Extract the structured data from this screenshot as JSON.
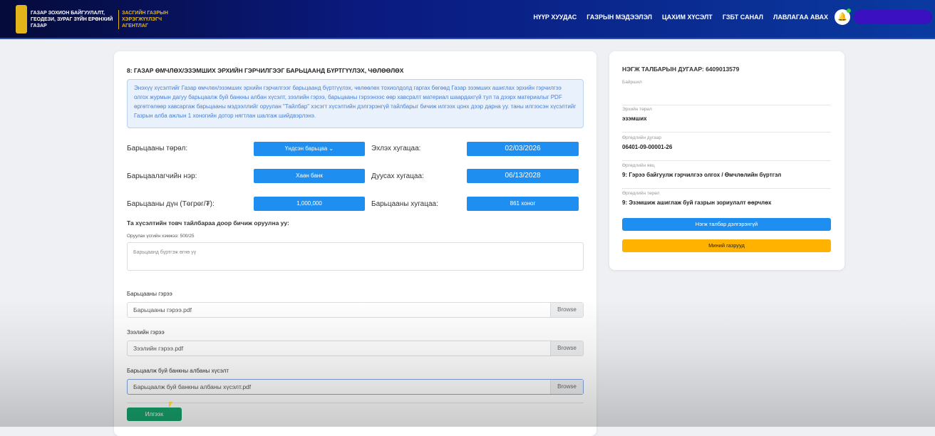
{
  "header": {
    "org_name": "ГАЗАР ЗОХИОН БАЙГУУЛАЛТ, ГЕОДЕЗИ, ЗУРАГ ЗҮЙН ЕРӨНХИЙ ГАЗАР",
    "agency": "ЗАСГИЙН ГАЗРЫН ХЭРЭГЖҮҮЛЭГЧ АГЕНТЛАГ",
    "nav": [
      "НҮҮР ХУУДАС",
      "ГАЗРЫН МЭДЭЭЛЭЛ",
      "ЦАХИМ ХҮСЭЛТ",
      "ГЗБТ САНАЛ",
      "ЛАВЛАГАА АВАХ"
    ],
    "accent": "#0a1a80"
  },
  "form": {
    "title": "8: ГАЗАР ӨМЧЛӨХ/ЭЗЭМШИХ ЭРХИЙН ГЭРЧИЛГЭЭГ БАРЬЦААНД БҮРТГҮҮЛЭХ, ЧӨЛӨӨЛӨХ",
    "info": "Энэхүү хүсэлтийг Газар өмчлөх/эзэмших эрхийн гэрчилгээг барьцаанд бүртгүүлэх, чөлөөлөх тохиолдолд гаргах бөгөөд Газар эзэмших ашиглах эрхийн гэрчилгээ олгох журмын дагуу барьцаалж буй банкны албан хүсэлт, зээлийн гэрээ, барьцааны гэрээнээс өөр хавсралт материал шаардахгүй тул та дээрх материалыг PDF өргөтгөлөөр хавсаргаж барьцааны мэдээллийг оруулан \"Тайлбар\" хэсэгт хүсэлтийн дэлгэрэнгүй тайлбарыг бичиж илгээх цонх дээр дарна уу. таны илгээсэн хүсэлтийг Газрын алба ажлын 1 хоногийн дотор нягтлан шалгаж шийдвэрлэнэ.",
    "pledge_type_label": "Барьцааны төрөл:",
    "pledge_type": "Үндсэн барьцаа",
    "start_label": "Эхлэх хугацаа:",
    "start": "02/03/2026",
    "pledgee_label": "Барьцаалагчийн нэр:",
    "pledgee": "Хаан банк",
    "end_label": "Дуусах хугацаа:",
    "end": "06/13/2028",
    "amount_label": "Барьцааны дүн (Төгрөг/₮):",
    "amount": "1,000,000",
    "duration_label": "Барьцааны хугацаа:",
    "duration": "861 хоног",
    "desc_heading": "Та хүсэлтийн товч тайлбараа доор бичиж оруулна уу:",
    "char_count": "Оруулах үсгийн хэмжээ: 500/25",
    "desc_value": "Барьцаанд бүртгэж өгнө үү",
    "files": [
      {
        "label": "Барьцааны гэрээ",
        "value": "Барьцааны гэрээ.pdf",
        "browse": "Browse"
      },
      {
        "label": "Зээлийн гэрээ",
        "value": "Зээлийн гэрээ.pdf",
        "browse": "Browse"
      },
      {
        "label": "Барьцаалж буй банкны албаны хүсэлт",
        "value": "Барьцаалж буй банкны албаны хүсэлт.pdf",
        "browse": "Browse"
      }
    ],
    "submit": "Илгээх"
  },
  "parcel": {
    "title": "НЭГЖ ТАЛБАРЫН ДУГААР: 6409013579",
    "fields": [
      {
        "key": "Байршил",
        "value": ""
      },
      {
        "key": "Эрхийн төрөл",
        "value": "эзэмших"
      },
      {
        "key": "Өргөдлийн дугаар",
        "value": "06401-09-00001-26"
      },
      {
        "key": "Өргөдлийн явц",
        "value": "9: Гэрээ байгуулж гэрчилгээ олгох / Өмчлөлийн бүртгэл"
      },
      {
        "key": "Өргөдлийн төрөл",
        "value": "9: Эзэмшиж ашиглаж буй газрын зориулалт өөрчлөх"
      }
    ],
    "detail_button": "Нэгж талбар дэлгэрэнгүй",
    "my_lands_button": "Миний газрууд",
    "detail_color": "#1e8ff0",
    "my_lands_color": "#ffb300"
  }
}
